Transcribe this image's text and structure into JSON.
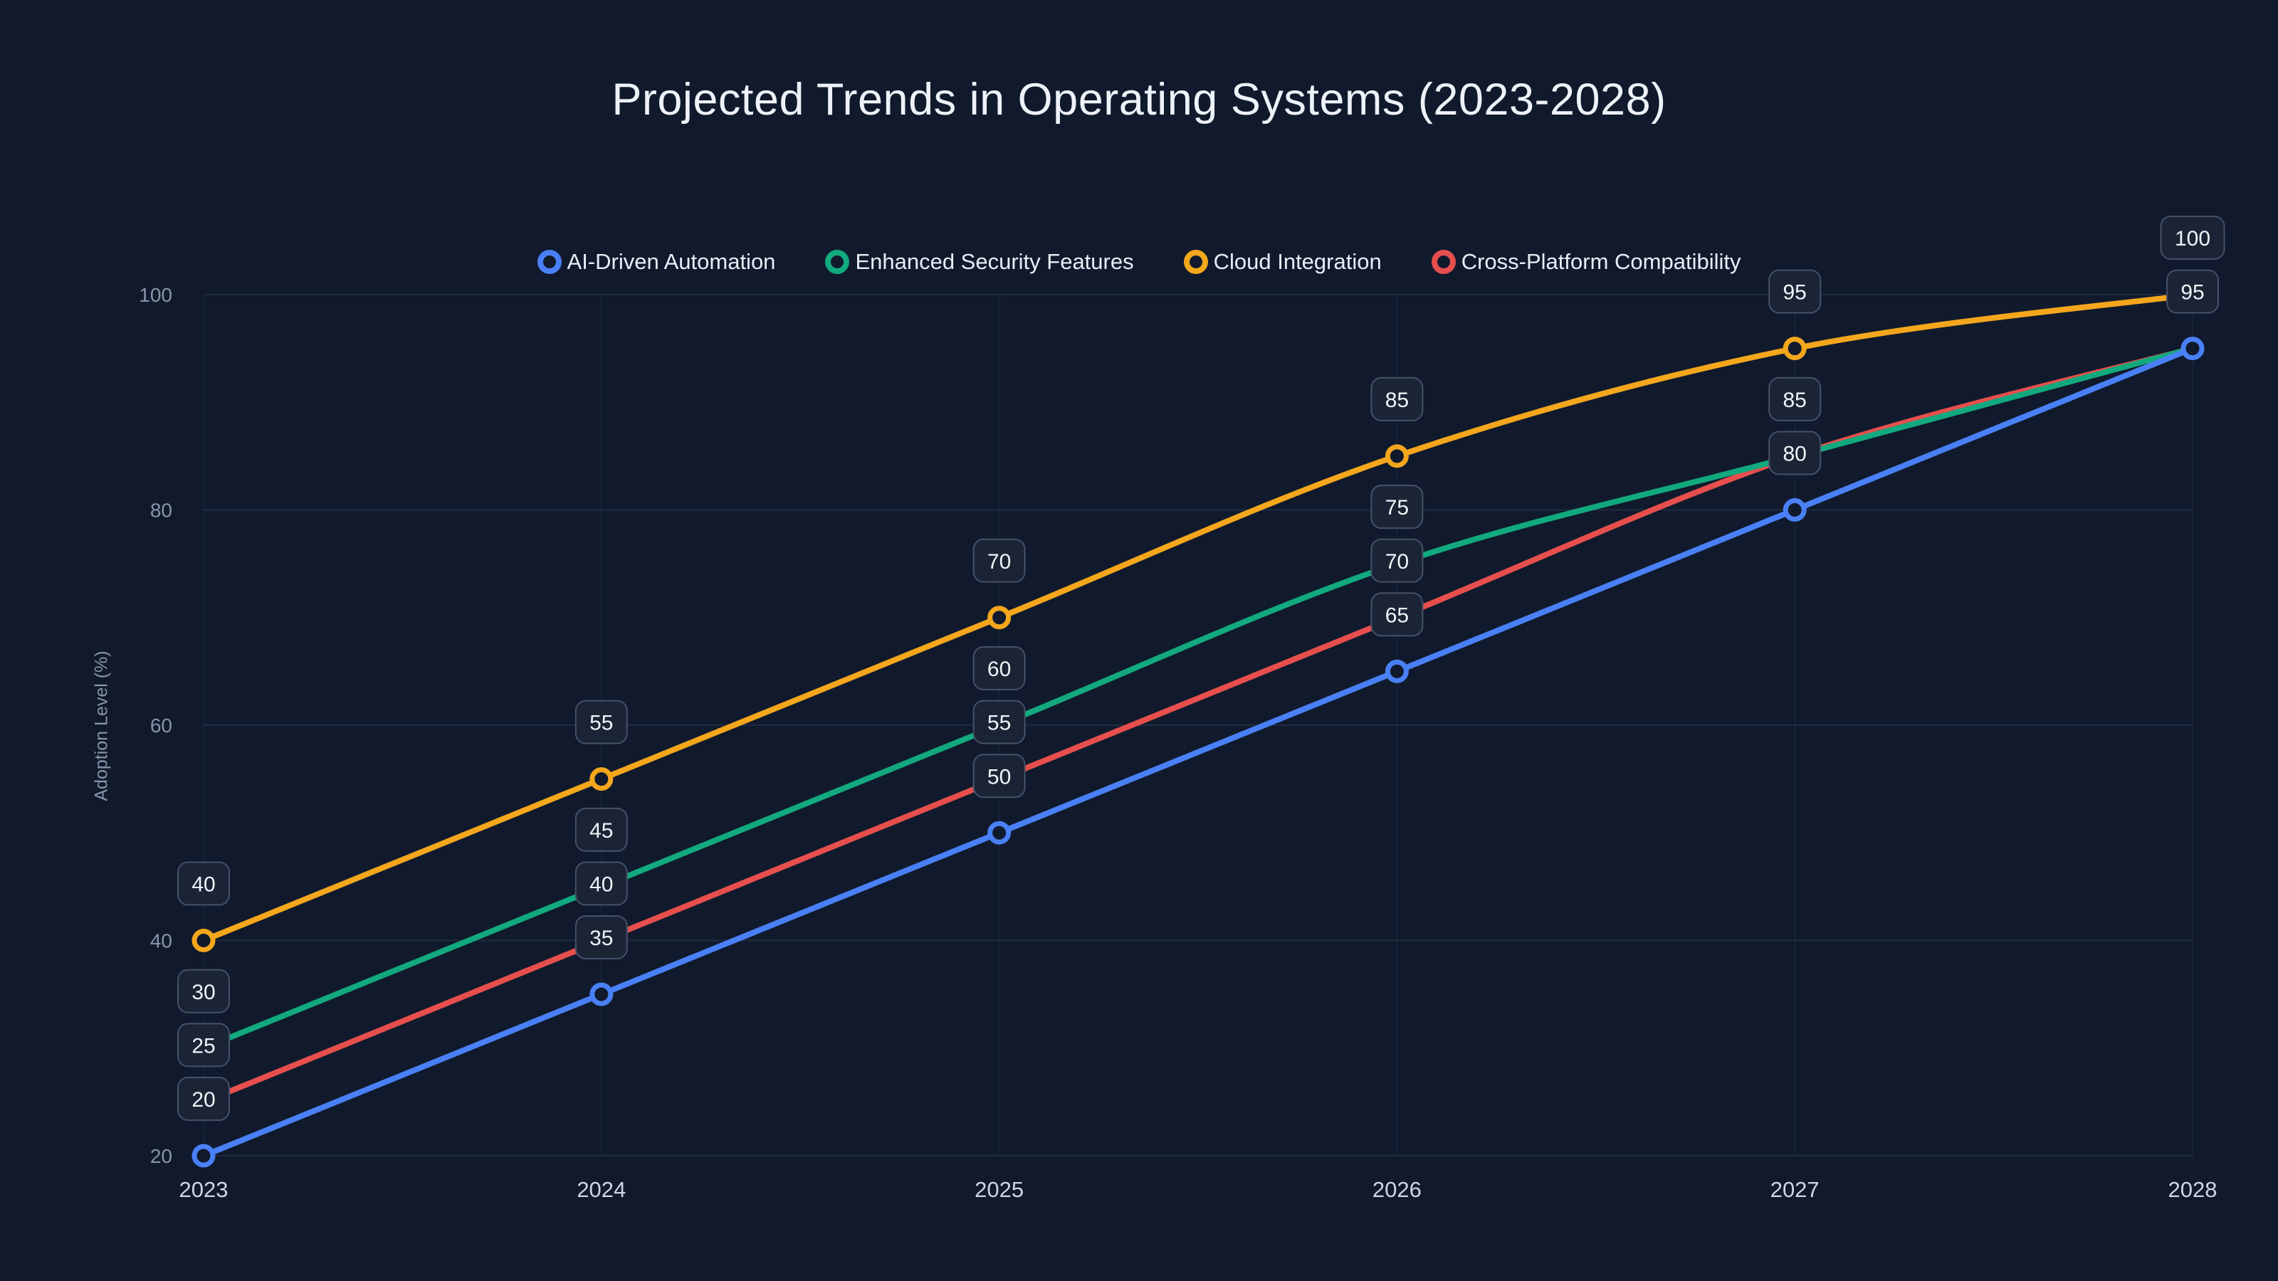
{
  "title": "Projected Trends in Operating Systems (2023-2028)",
  "chart_data": {
    "type": "line",
    "x": [
      "2023",
      "2024",
      "2025",
      "2026",
      "2027",
      "2028"
    ],
    "series": [
      {
        "name": "AI-Driven Automation",
        "color": "#4a80f5",
        "values": [
          20,
          35,
          50,
          65,
          80,
          95
        ],
        "markers": true
      },
      {
        "name": "Enhanced Security Features",
        "color": "#12a97e",
        "values": [
          30,
          45,
          60,
          75,
          85,
          95
        ],
        "markers": false
      },
      {
        "name": "Cloud Integration",
        "color": "#f4a61c",
        "values": [
          40,
          55,
          70,
          85,
          95,
          100
        ],
        "markers": true
      },
      {
        "name": "Cross-Platform Compatibility",
        "color": "#e64f4d",
        "values": [
          25,
          40,
          55,
          70,
          85,
          95
        ],
        "markers": false
      }
    ],
    "xlabel": "",
    "ylabel": "Adoption Level (%)",
    "ylim": [
      20,
      100
    ],
    "yticks": [
      20,
      40,
      60,
      80,
      100
    ],
    "grid": true,
    "legend_position": "top-center",
    "point_labels_shown": true,
    "theme": {
      "background": "#101a2c",
      "grid": "#36415a",
      "ytick_text": "#8a94a8",
      "xtick_text": "#ced6e3",
      "label_box_bg": "#1b2435",
      "label_box_border": "#46506a",
      "label_box_text": "#f0f3f8",
      "title_color": "#eef2f8"
    }
  }
}
